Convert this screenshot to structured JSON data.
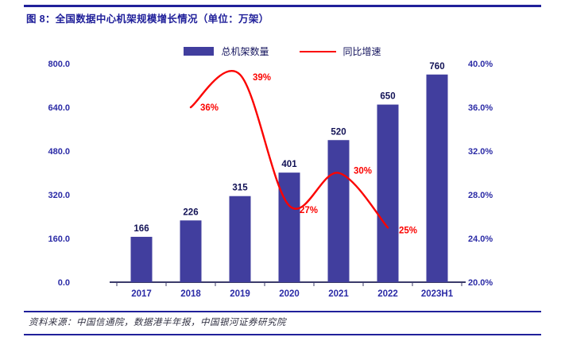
{
  "header": {
    "title": "图 8：全国数据中心机架规模增长情况（单位：万架）"
  },
  "footer": {
    "source": "资料来源：中国信通院，数据港半年报，中国银河证券研究院"
  },
  "theme": {
    "navy": "#20209A",
    "red": "#FB0300",
    "bar": "#413E9E",
    "axis_text": "#2B2BA6",
    "value_label": "#111155"
  },
  "chart_data": {
    "type": "bar",
    "overlay": "line",
    "title": "全国数据中心机架规模增长情况（单位：万架）",
    "categories": [
      "2017",
      "2018",
      "2019",
      "2020",
      "2021",
      "2022",
      "2023H1"
    ],
    "series": [
      {
        "name": "总机架数量",
        "type": "bar",
        "axis": "left",
        "values": [
          166,
          226,
          315,
          401,
          520,
          650,
          760
        ]
      },
      {
        "name": "同比增速",
        "type": "line",
        "axis": "right",
        "values": [
          null,
          36,
          39,
          27,
          30,
          25,
          null
        ],
        "point_labels": [
          "",
          "36%",
          "39%",
          "27%",
          "30%",
          "25%",
          ""
        ]
      }
    ],
    "left_axis": {
      "min": 0,
      "max": 800,
      "step": 160,
      "tick_labels": [
        "0.0",
        "160.0",
        "320.0",
        "480.0",
        "640.0",
        "800.0"
      ]
    },
    "right_axis": {
      "min": 20,
      "max": 40,
      "step": 4,
      "tick_labels": [
        "20.0%",
        "24.0%",
        "28.0%",
        "32.0%",
        "36.0%",
        "40.0%"
      ]
    },
    "legend_position": "top",
    "grid": false
  }
}
